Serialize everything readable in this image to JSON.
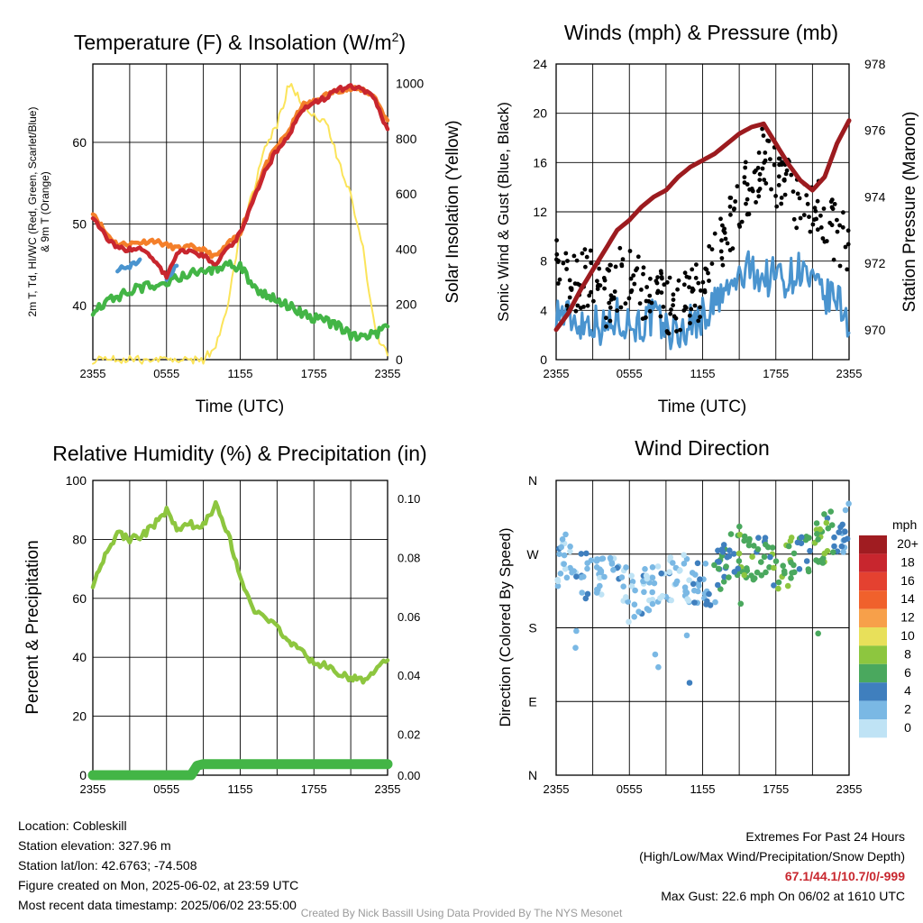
{
  "chart_data": [
    {
      "type": "line",
      "title": "Temperature (F) & Insolation (W/m²)",
      "xlabel": "Time (UTC)",
      "ylabel_left_lines": [
        "2m T, Td, HI/WC (Red, Green, Scarlet/Blue)",
        "& 9m T (Orange)"
      ],
      "ylabel_right": "Solar Insolation (Yellow)",
      "x_ticks": [
        "2355",
        "0555",
        "1155",
        "1755",
        "2355"
      ],
      "ylim": [
        33.4,
        69.6
      ],
      "y_ticks": [
        40,
        50,
        60
      ],
      "y2lim": [
        0,
        1070
      ],
      "y2_ticks": [
        0,
        200,
        400,
        600,
        800,
        1000
      ],
      "x_hours": [
        0,
        1,
        2,
        3,
        4,
        5,
        6,
        7,
        8,
        9,
        10,
        11,
        12,
        13,
        14,
        15,
        16,
        17,
        18,
        19,
        20,
        21,
        22,
        23,
        24
      ],
      "series": [
        {
          "color": "#f47f2a",
          "axis": "left",
          "values": [
            51.5,
            49.0,
            47.5,
            47.6,
            47.8,
            48.0,
            47.4,
            47.0,
            47.2,
            46.8,
            46.0,
            47.5,
            49.0,
            53.0,
            57.0,
            59.5,
            61.5,
            64.5,
            65.0,
            65.8,
            66.4,
            66.5,
            66.5,
            65.5,
            62.5
          ]
        },
        {
          "color": "#c8262e",
          "axis": "left",
          "values": [
            51.0,
            48.5,
            47.0,
            46.9,
            47.0,
            45.5,
            43.5,
            46.8,
            46.5,
            46.0,
            45.2,
            47.0,
            48.8,
            52.5,
            56.5,
            59.0,
            61.0,
            64.0,
            64.8,
            65.5,
            66.5,
            66.8,
            66.4,
            65.2,
            61.5
          ]
        },
        {
          "color": "#4a94cf",
          "axis": "left",
          "values": [
            48.5,
            null,
            44.5,
            44.8,
            45.5,
            null,
            43.0,
            45.5,
            null,
            null,
            null,
            null,
            48.0,
            null,
            55.0,
            null,
            null,
            null,
            null,
            null,
            null,
            null,
            null,
            null,
            null
          ]
        },
        {
          "color": "#43b546",
          "axis": "left",
          "values": [
            39.5,
            40.5,
            41.0,
            41.8,
            42.2,
            42.5,
            42.8,
            43.5,
            43.9,
            44.2,
            44.5,
            45.0,
            44.8,
            42.5,
            41.5,
            40.5,
            40.0,
            39.0,
            38.5,
            38.0,
            37.5,
            36.5,
            36.0,
            36.5,
            37.5
          ]
        },
        {
          "color": "#fbe45a",
          "axis": "right",
          "values": [
            0,
            0,
            0,
            0,
            0,
            0,
            0,
            0,
            0,
            0,
            50,
            200,
            450,
            600,
            760,
            850,
            1000,
            930,
            880,
            860,
            720,
            600,
            400,
            100,
            20
          ]
        }
      ]
    },
    {
      "type": "scatter",
      "title": "Winds (mph) & Pressure (mb)",
      "xlabel": "Time (UTC)",
      "ylabel_left": "Sonic Wind & Gust (Blue, Black)",
      "ylabel_right": "Station Pressure (Maroon)",
      "x_ticks": [
        "2355",
        "0555",
        "1155",
        "1755",
        "2355"
      ],
      "ylim": [
        0,
        24
      ],
      "y_ticks": [
        0,
        4,
        8,
        12,
        16,
        20,
        24
      ],
      "y2lim": [
        969.1,
        978.0
      ],
      "y2_ticks": [
        970,
        972,
        974,
        976,
        978
      ],
      "x_hours": [
        0,
        1,
        2,
        3,
        4,
        5,
        6,
        7,
        8,
        9,
        10,
        11,
        12,
        13,
        14,
        15,
        16,
        17,
        18,
        19,
        20,
        21,
        22,
        23,
        24
      ],
      "wind_mph": [
        4.0,
        3.5,
        3.0,
        3.2,
        2.5,
        3.5,
        3.0,
        2.8,
        3.5,
        2.5,
        2.0,
        3.0,
        3.5,
        4.5,
        5.5,
        6.5,
        7.5,
        6.5,
        7.0,
        6.5,
        7.5,
        6.0,
        5.0,
        5.0,
        3.0
      ],
      "gust_mph": [
        8.5,
        6.0,
        6.5,
        7.0,
        5.0,
        6.5,
        7.0,
        5.5,
        6.0,
        4.5,
        4.0,
        5.0,
        6.0,
        8.0,
        10.0,
        13.0,
        14.5,
        16.5,
        15.0,
        14.0,
        12.0,
        13.0,
        11.5,
        10.0,
        9.0
      ],
      "pressure_mb": [
        970.0,
        970.5,
        971.2,
        971.8,
        972.4,
        973.0,
        973.3,
        973.7,
        974.0,
        974.2,
        974.6,
        974.9,
        975.1,
        975.3,
        975.6,
        975.9,
        976.1,
        976.2,
        975.6,
        975.0,
        974.5,
        974.2,
        974.6,
        975.6,
        976.3
      ],
      "series": [
        {
          "name": "Blue",
          "color": "#4a94cf"
        },
        {
          "name": "Black",
          "color": "#000000"
        },
        {
          "name": "Maroon",
          "color": "#9c1b1f"
        }
      ]
    },
    {
      "type": "line",
      "title": "Relative Humidity (%) & Precipitation (in)",
      "ylabel_left": "Percent & Precipitation",
      "x_ticks": [
        "2355",
        "0555",
        "1155",
        "1755",
        "2355"
      ],
      "ylim": [
        0,
        100
      ],
      "y_ticks": [
        0,
        20,
        40,
        60,
        80,
        100
      ],
      "y2lim": [
        0,
        0.1
      ],
      "y2_ticks": [
        "0.00",
        "0.02",
        "0.04",
        "0.06",
        "0.08",
        "0.10"
      ],
      "x_hours": [
        0,
        1,
        2,
        3,
        4,
        5,
        6,
        7,
        8,
        9,
        10,
        11,
        12,
        13,
        14,
        15,
        16,
        17,
        18,
        19,
        20,
        21,
        22,
        23,
        24
      ],
      "rh_percent": [
        65,
        75,
        82,
        80,
        81,
        85,
        90,
        83,
        85,
        85,
        92,
        82,
        68,
        56,
        53,
        50,
        45,
        42,
        38,
        37,
        35,
        33,
        32,
        36,
        40
      ],
      "precip_in": [
        0,
        0,
        0,
        0,
        0,
        0,
        0,
        0,
        0,
        0.001,
        0.001,
        0.001,
        0.001,
        0.001,
        0.001,
        0.001,
        0.001,
        0.001,
        0.001,
        0.001,
        0.001,
        0.001,
        0.001,
        0.001,
        0.001
      ],
      "series": [
        {
          "color": "#8dc63f"
        },
        {
          "color": "#43b546"
        }
      ]
    },
    {
      "type": "scatter",
      "title": "Wind Direction",
      "ylabel_left": "Direction (Colored By Speed)",
      "x_ticks": [
        "2355",
        "0555",
        "1155",
        "1755",
        "2355"
      ],
      "y_ticks": [
        "N",
        "E",
        "S",
        "W",
        "N"
      ],
      "ylim": [
        0,
        360
      ],
      "x_hours": [
        0,
        1,
        2,
        3,
        4,
        5,
        6,
        7,
        8,
        9,
        10,
        11,
        12,
        13,
        14,
        15,
        16,
        17,
        18,
        19,
        20,
        21,
        22,
        23,
        24
      ],
      "direction_deg": [
        245,
        270,
        250,
        240,
        235,
        250,
        215,
        225,
        230,
        235,
        250,
        230,
        230,
        240,
        260,
        275,
        265,
        270,
        255,
        260,
        265,
        280,
        290,
        295,
        305
      ],
      "speed_mph": [
        3,
        2,
        4,
        3,
        2,
        3,
        2,
        3,
        2,
        3,
        2,
        3,
        4,
        5,
        6,
        7,
        7,
        6,
        7,
        8,
        6,
        7,
        8,
        5,
        4
      ],
      "legend_title": "mph",
      "legend_labels": [
        "20+",
        "18",
        "16",
        "14",
        "12",
        "10",
        "8",
        "6",
        "4",
        "2",
        "0"
      ],
      "legend_colors": [
        "#a01c21",
        "#c8262e",
        "#e44130",
        "#f0612c",
        "#f7a04a",
        "#e8e05a",
        "#8dc63f",
        "#4aa85e",
        "#3f7fbe",
        "#7ab8e4",
        "#bfe3f5"
      ]
    }
  ],
  "info": {
    "location": "Location: Cobleskill",
    "elevation": "Station elevation: 327.96 m",
    "latlon": "Station lat/lon: 42.6763; -74.508",
    "created": "Figure created on Mon, 2025-06-02, at 23:59 UTC",
    "recent": "Most recent data timestamp: 2025/06/02 23:55:00"
  },
  "extremes": {
    "title": "Extremes For Past 24 Hours",
    "subtitle": "(High/Low/Max Wind/Precipitation/Snow Depth)",
    "values": "67.1/44.1/10.7/0/-999",
    "gust": "Max Gust: 22.6 mph On 06/02 at 1610 UTC"
  },
  "credit": "Created By Nick Bassill Using Data Provided By The NYS Mesonet"
}
